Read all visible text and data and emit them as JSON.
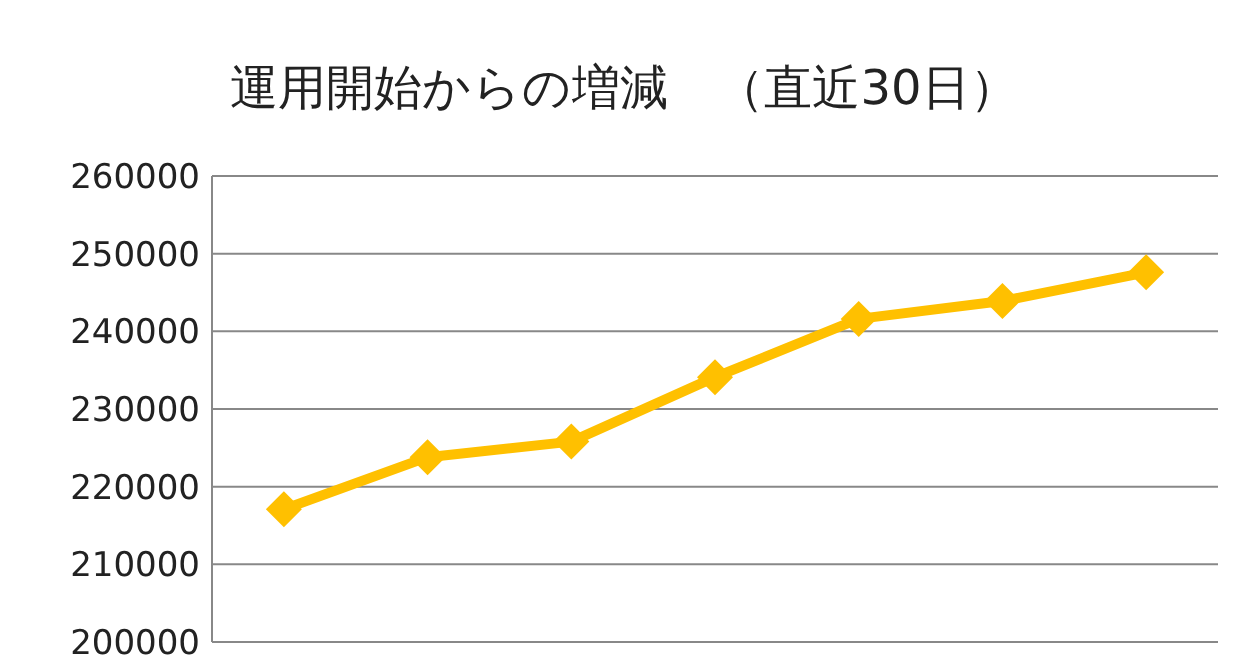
{
  "chart_data": {
    "type": "line",
    "title": "運用開始からの増減　（直近30日）",
    "categories": [
      null,
      null,
      null,
      null,
      null,
      null,
      null
    ],
    "series": [
      {
        "color": "#ffc000",
        "values": [
          217100,
          223800,
          225800,
          234100,
          241600,
          243900,
          247600
        ]
      }
    ],
    "ylim": [
      200000,
      260000
    ],
    "yticks": [
      200000,
      210000,
      220000,
      230000,
      240000,
      250000,
      260000
    ],
    "grid": "y",
    "marker": "diamond",
    "line_style": "solid"
  }
}
